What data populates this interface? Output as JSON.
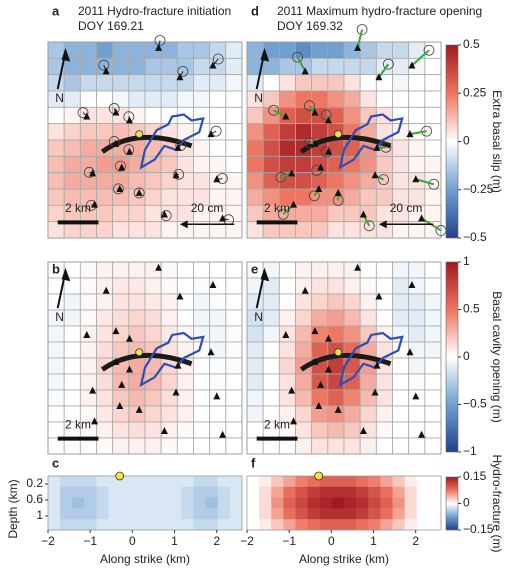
{
  "chart_data": [
    {
      "type": "heatmap",
      "label": "a",
      "title": "2011 Hydro-fracture initiation",
      "subtitle": "DOY 169.21",
      "clim": [
        -0.5,
        0.5
      ],
      "north_label": "N",
      "scale_label": "2 km",
      "vector_scale_label": "20 cm",
      "values": [
        [
          -0.15,
          -0.2,
          -0.2,
          -0.25,
          -0.2,
          -0.2,
          -0.2,
          -0.2,
          -0.15,
          -0.15,
          -0.1,
          -0.05
        ],
        [
          -0.15,
          -0.2,
          -0.2,
          -0.2,
          -0.2,
          -0.2,
          -0.15,
          -0.15,
          -0.15,
          -0.1,
          -0.1,
          -0.05
        ],
        [
          -0.1,
          -0.15,
          -0.1,
          -0.1,
          -0.1,
          -0.1,
          -0.1,
          -0.1,
          -0.1,
          -0.05,
          -0.05,
          -0.02
        ],
        [
          -0.05,
          -0.05,
          0,
          0,
          -0.02,
          -0.05,
          -0.05,
          -0.05,
          -0.02,
          -0.02,
          0,
          0
        ],
        [
          0,
          0.02,
          0.05,
          0.05,
          0.05,
          0.02,
          0,
          0,
          0,
          0,
          0,
          0
        ],
        [
          0.05,
          0.08,
          0.1,
          0.1,
          0.12,
          0.1,
          0.08,
          0.05,
          0.02,
          0,
          0,
          0
        ],
        [
          0.1,
          0.12,
          0.15,
          0.15,
          0.15,
          0.15,
          0.12,
          0.1,
          0.05,
          0.02,
          0,
          0
        ],
        [
          0.12,
          0.15,
          0.15,
          0.18,
          0.18,
          0.15,
          0.12,
          0.1,
          0.05,
          0.02,
          0.02,
          0
        ],
        [
          0.12,
          0.15,
          0.15,
          0.15,
          0.15,
          0.12,
          0.1,
          0.08,
          0.05,
          0.05,
          0.02,
          0.02
        ],
        [
          0.1,
          0.12,
          0.12,
          0.12,
          0.12,
          0.1,
          0.08,
          0.05,
          0.05,
          0.05,
          0.02,
          0.02
        ],
        [
          0.08,
          0.1,
          0.1,
          0.1,
          0.08,
          0.08,
          0.05,
          0.05,
          0.05,
          0.02,
          0.02,
          0.02
        ],
        [
          0.05,
          0.08,
          0.08,
          0.08,
          0.05,
          0.05,
          0.05,
          0.02,
          0.02,
          0.02,
          0.02,
          0.02
        ]
      ]
    },
    {
      "type": "heatmap",
      "label": "b",
      "clim": [
        -1,
        1
      ],
      "north_label": "N",
      "scale_label": "2 km",
      "values": [
        [
          0,
          0,
          0.02,
          0.05,
          0.05,
          0.05,
          0.05,
          0.02,
          0,
          0,
          0,
          0
        ],
        [
          0,
          0,
          0.02,
          0.05,
          0.08,
          0.08,
          0.05,
          0.02,
          0,
          -0.02,
          0,
          0
        ],
        [
          0,
          -0.05,
          0.02,
          0.05,
          0.1,
          0.1,
          0.08,
          0.05,
          0,
          -0.05,
          -0.02,
          0
        ],
        [
          -0.05,
          -0.05,
          0.02,
          0.08,
          0.12,
          0.15,
          0.12,
          0.05,
          0,
          -0.05,
          -0.05,
          0
        ],
        [
          -0.05,
          0,
          0.05,
          0.1,
          0.15,
          0.2,
          0.15,
          0.08,
          0.02,
          -0.05,
          -0.05,
          -0.02
        ],
        [
          -0.05,
          0,
          0.05,
          0.12,
          0.2,
          0.25,
          0.2,
          0.1,
          0.05,
          0,
          -0.05,
          -0.02
        ],
        [
          -0.05,
          0,
          0.05,
          0.15,
          0.25,
          0.3,
          0.25,
          0.15,
          0.05,
          0,
          -0.02,
          -0.02
        ],
        [
          -0.05,
          0,
          0.05,
          0.12,
          0.25,
          0.3,
          0.25,
          0.15,
          0.05,
          0,
          -0.02,
          0
        ],
        [
          -0.02,
          0,
          0.05,
          0.1,
          0.2,
          0.25,
          0.2,
          0.12,
          0.05,
          0,
          0,
          0
        ],
        [
          0,
          0,
          0.02,
          0.08,
          0.15,
          0.2,
          0.15,
          0.1,
          0.05,
          0,
          0,
          0
        ],
        [
          0,
          0,
          0.02,
          0.05,
          0.1,
          0.12,
          0.1,
          0.05,
          0.02,
          0,
          0,
          0
        ],
        [
          0,
          0,
          0,
          0.02,
          0.05,
          0.05,
          0.05,
          0.02,
          0,
          0,
          0,
          0
        ]
      ]
    },
    {
      "type": "heatmap",
      "label": "c",
      "clim": [
        -0.15,
        0.15
      ],
      "xlabel": "Along strike (km)",
      "ylabel": "Depth (km)",
      "xlim": [
        -2,
        2.6
      ],
      "ylim": [
        0,
        1.35
      ],
      "source_x": -0.3,
      "xticks": [
        {
          "value": -2,
          "label": "−2"
        },
        {
          "value": -1,
          "label": "−1"
        },
        0,
        1,
        2
      ],
      "yticks": [
        0.2,
        0.6,
        1
      ],
      "values": [
        [
          -0.02,
          -0.03,
          -0.03,
          -0.03,
          -0.02,
          -0.02,
          -0.02,
          -0.02,
          -0.02,
          -0.02,
          -0.02,
          -0.02,
          -0.03,
          -0.03,
          -0.02,
          -0.02
        ],
        [
          -0.02,
          -0.04,
          -0.04,
          -0.04,
          -0.03,
          -0.02,
          -0.02,
          -0.02,
          -0.02,
          -0.02,
          -0.02,
          -0.03,
          -0.04,
          -0.04,
          -0.03,
          -0.02
        ],
        [
          -0.02,
          -0.04,
          -0.05,
          -0.04,
          -0.03,
          -0.02,
          -0.02,
          -0.02,
          -0.02,
          -0.02,
          -0.02,
          -0.03,
          -0.04,
          -0.05,
          -0.03,
          -0.02
        ],
        [
          -0.02,
          -0.04,
          -0.04,
          -0.04,
          -0.03,
          -0.02,
          -0.02,
          -0.02,
          -0.02,
          -0.02,
          -0.02,
          -0.03,
          -0.04,
          -0.04,
          -0.03,
          -0.02
        ],
        [
          -0.02,
          -0.03,
          -0.03,
          -0.03,
          -0.02,
          -0.02,
          -0.02,
          -0.02,
          -0.02,
          -0.02,
          -0.02,
          -0.02,
          -0.03,
          -0.03,
          -0.02,
          -0.02
        ]
      ]
    },
    {
      "type": "heatmap",
      "label": "d",
      "title": "2011 Maximum hydro-fracture opening",
      "subtitle": "DOY 169.32",
      "clim": [
        -0.5,
        0.5
      ],
      "north_label": "N",
      "scale_label": "2 km",
      "vector_scale_label": "20 cm",
      "colorbar_label": "Extra basal slip (m)",
      "cticks": [
        0.5,
        0.25,
        0,
        {
          "value": -0.25,
          "label": "−0.25"
        },
        {
          "value": -0.5,
          "label": "−0.5"
        }
      ],
      "colormap": [
        "#23408e",
        "#6fa0d2",
        "#ffffff",
        "#ee7560",
        "#a01820"
      ],
      "values": [
        [
          -0.2,
          -0.25,
          -0.25,
          -0.3,
          -0.25,
          -0.25,
          -0.2,
          -0.15,
          -0.1,
          -0.1,
          -0.05,
          0
        ],
        [
          -0.2,
          -0.2,
          -0.15,
          -0.15,
          -0.1,
          -0.1,
          -0.1,
          -0.1,
          -0.05,
          -0.05,
          -0.02,
          0
        ],
        [
          -0.05,
          0,
          0.05,
          0.1,
          0.1,
          0.1,
          0.05,
          0,
          0,
          -0.02,
          0,
          0
        ],
        [
          0.05,
          0.1,
          0.2,
          0.25,
          0.25,
          0.2,
          0.15,
          0.05,
          0,
          0,
          0,
          0
        ],
        [
          0.1,
          0.2,
          0.3,
          0.35,
          0.35,
          0.3,
          0.2,
          0.1,
          0.05,
          0,
          0,
          0
        ],
        [
          0.2,
          0.3,
          0.4,
          0.45,
          0.4,
          0.35,
          0.25,
          0.15,
          0.05,
          0.02,
          0,
          0
        ],
        [
          0.25,
          0.35,
          0.45,
          0.45,
          0.4,
          0.35,
          0.3,
          0.2,
          0.1,
          0.05,
          0.02,
          0
        ],
        [
          0.25,
          0.35,
          0.4,
          0.4,
          0.35,
          0.3,
          0.25,
          0.2,
          0.1,
          0.05,
          0.02,
          0.02
        ],
        [
          0.2,
          0.3,
          0.35,
          0.35,
          0.3,
          0.25,
          0.2,
          0.15,
          0.1,
          0.05,
          0.05,
          0.02
        ],
        [
          0.15,
          0.2,
          0.25,
          0.25,
          0.2,
          0.2,
          0.15,
          0.1,
          0.1,
          0.05,
          0.05,
          0.02
        ],
        [
          0.1,
          0.15,
          0.15,
          0.15,
          0.15,
          0.1,
          0.1,
          0.1,
          0.05,
          0.05,
          0.02,
          0.02
        ],
        [
          0.05,
          0.1,
          0.1,
          0.1,
          0.1,
          0.05,
          0.05,
          0.05,
          0.05,
          0.02,
          0.02,
          0.02
        ]
      ]
    },
    {
      "type": "heatmap",
      "label": "e",
      "clim": [
        -1,
        1
      ],
      "north_label": "N",
      "scale_label": "2 km",
      "colorbar_label": "Basal cavity opening (m)",
      "cticks": [
        1,
        0.5,
        0,
        {
          "value": -0.5,
          "label": "−0.5"
        },
        {
          "value": -1,
          "label": "−1"
        }
      ],
      "colormap": [
        "#23408e",
        "#6fa0d2",
        "#ffffff",
        "#ee7560",
        "#a01820"
      ],
      "values": [
        [
          0,
          -0.05,
          0,
          0.05,
          0.05,
          0.05,
          0.05,
          0,
          0,
          -0.05,
          -0.05,
          0
        ],
        [
          -0.05,
          -0.1,
          0,
          0.05,
          0.1,
          0.1,
          0.05,
          0.02,
          0,
          -0.1,
          -0.05,
          0
        ],
        [
          -0.1,
          -0.1,
          0,
          0.1,
          0.15,
          0.2,
          0.15,
          0.05,
          0,
          -0.1,
          -0.1,
          -0.05
        ],
        [
          -0.15,
          -0.1,
          0.05,
          0.15,
          0.3,
          0.35,
          0.25,
          0.1,
          0,
          -0.1,
          -0.1,
          -0.05
        ],
        [
          -0.15,
          -0.05,
          0.1,
          0.25,
          0.45,
          0.5,
          0.4,
          0.2,
          0.05,
          -0.05,
          -0.1,
          -0.05
        ],
        [
          -0.1,
          0,
          0.1,
          0.3,
          0.6,
          0.7,
          0.55,
          0.3,
          0.1,
          0,
          -0.05,
          -0.05
        ],
        [
          -0.1,
          0,
          0.15,
          0.35,
          0.7,
          0.8,
          0.65,
          0.35,
          0.1,
          0,
          -0.05,
          0
        ],
        [
          -0.1,
          0,
          0.1,
          0.3,
          0.65,
          0.75,
          0.6,
          0.3,
          0.1,
          0,
          -0.02,
          0
        ],
        [
          -0.05,
          0,
          0.1,
          0.25,
          0.5,
          0.6,
          0.45,
          0.25,
          0.1,
          0,
          0,
          0
        ],
        [
          -0.05,
          0,
          0.05,
          0.15,
          0.35,
          0.4,
          0.3,
          0.15,
          0.05,
          0,
          0,
          0
        ],
        [
          0,
          0,
          0.02,
          0.1,
          0.2,
          0.25,
          0.2,
          0.1,
          0.02,
          0,
          0,
          0
        ],
        [
          0,
          0,
          0,
          0.05,
          0.1,
          0.1,
          0.1,
          0.05,
          0,
          0,
          0,
          0
        ]
      ]
    },
    {
      "type": "heatmap",
      "label": "f",
      "clim": [
        -0.15,
        0.15
      ],
      "xlabel": "Along strike (km)",
      "xlim": [
        -2,
        2.6
      ],
      "ylim": [
        0,
        1.35
      ],
      "source_x": -0.3,
      "xticks": [
        {
          "value": -2,
          "label": "−2"
        },
        {
          "value": -1,
          "label": "−1"
        },
        0,
        1,
        2
      ],
      "colorbar_label": "Hydro-fracture (m)",
      "cticks": [
        0.15,
        0,
        {
          "value": -0.15,
          "label": "−0.15"
        }
      ],
      "colormap": [
        "#23408e",
        "#6fa0d2",
        "#ffffff",
        "#ee7560",
        "#a01820"
      ],
      "values": [
        [
          0,
          0.01,
          0.03,
          0.05,
          0.07,
          0.08,
          0.09,
          0.09,
          0.09,
          0.08,
          0.07,
          0.05,
          0.03,
          0.01,
          0,
          0
        ],
        [
          0,
          0.02,
          0.05,
          0.08,
          0.1,
          0.12,
          0.13,
          0.13,
          0.13,
          0.12,
          0.1,
          0.08,
          0.05,
          0.02,
          0,
          0
        ],
        [
          0,
          0.02,
          0.06,
          0.09,
          0.11,
          0.13,
          0.14,
          0.15,
          0.14,
          0.13,
          0.11,
          0.09,
          0.06,
          0.02,
          0,
          0
        ],
        [
          0,
          0.02,
          0.05,
          0.08,
          0.1,
          0.12,
          0.13,
          0.13,
          0.13,
          0.12,
          0.1,
          0.08,
          0.05,
          0.02,
          0,
          0
        ],
        [
          0,
          0.01,
          0.03,
          0.05,
          0.07,
          0.08,
          0.09,
          0.09,
          0.09,
          0.08,
          0.07,
          0.05,
          0.03,
          0.01,
          0,
          0
        ]
      ]
    }
  ]
}
